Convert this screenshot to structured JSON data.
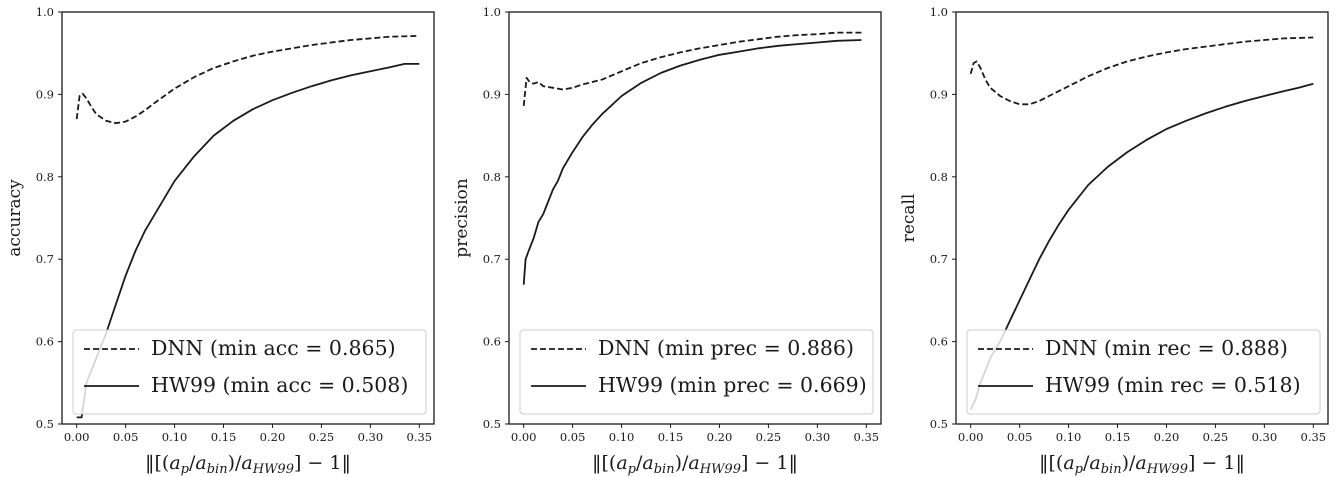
{
  "chart_data": [
    {
      "type": "line",
      "ylabel": "accuracy",
      "xlabel": "‖[(a_p/a_bin)/a_HW99] − 1‖",
      "xlim": [
        -0.015,
        0.365
      ],
      "ylim": [
        0.5,
        1.0
      ],
      "xticks": [
        "0.00",
        "0.05",
        "0.10",
        "0.15",
        "0.20",
        "0.25",
        "0.30",
        "0.35"
      ],
      "yticks": [
        "0.5",
        "0.6",
        "0.7",
        "0.8",
        "0.9",
        "1.0"
      ],
      "legend_position": "lower-right",
      "series": [
        {
          "name": "DNN (min acc = 0.865)",
          "style": "dashed",
          "x": [
            0.0,
            0.003,
            0.006,
            0.01,
            0.015,
            0.02,
            0.03,
            0.04,
            0.05,
            0.06,
            0.07,
            0.08,
            0.1,
            0.12,
            0.14,
            0.16,
            0.18,
            0.2,
            0.22,
            0.24,
            0.26,
            0.28,
            0.3,
            0.32,
            0.35
          ],
          "y": [
            0.87,
            0.898,
            0.901,
            0.895,
            0.885,
            0.876,
            0.868,
            0.865,
            0.867,
            0.873,
            0.881,
            0.89,
            0.907,
            0.921,
            0.932,
            0.94,
            0.947,
            0.952,
            0.956,
            0.96,
            0.963,
            0.966,
            0.968,
            0.97,
            0.971
          ]
        },
        {
          "name": "HW99 (min acc = 0.508)",
          "style": "solid",
          "x": [
            0.0,
            0.005,
            0.01,
            0.02,
            0.03,
            0.04,
            0.05,
            0.06,
            0.07,
            0.08,
            0.09,
            0.1,
            0.12,
            0.14,
            0.16,
            0.18,
            0.2,
            0.22,
            0.24,
            0.26,
            0.28,
            0.3,
            0.32,
            0.335,
            0.35
          ],
          "y": [
            0.508,
            0.508,
            0.55,
            0.58,
            0.61,
            0.645,
            0.68,
            0.71,
            0.735,
            0.755,
            0.775,
            0.795,
            0.825,
            0.85,
            0.868,
            0.882,
            0.893,
            0.902,
            0.91,
            0.917,
            0.923,
            0.928,
            0.933,
            0.937,
            0.937
          ]
        }
      ]
    },
    {
      "type": "line",
      "ylabel": "precision",
      "xlabel": "‖[(a_p/a_bin)/a_HW99] − 1‖",
      "xlim": [
        -0.015,
        0.365
      ],
      "ylim": [
        0.5,
        1.0
      ],
      "xticks": [
        "0.00",
        "0.05",
        "0.10",
        "0.15",
        "0.20",
        "0.25",
        "0.30",
        "0.35"
      ],
      "yticks": [
        "0.5",
        "0.6",
        "0.7",
        "0.8",
        "0.9",
        "1.0"
      ],
      "legend_position": "lower-right",
      "series": [
        {
          "name": "DNN (min prec = 0.886)",
          "style": "dashed",
          "x": [
            0.0,
            0.003,
            0.006,
            0.01,
            0.015,
            0.02,
            0.03,
            0.04,
            0.05,
            0.06,
            0.07,
            0.08,
            0.1,
            0.12,
            0.14,
            0.16,
            0.18,
            0.2,
            0.22,
            0.24,
            0.26,
            0.28,
            0.3,
            0.32,
            0.345
          ],
          "y": [
            0.886,
            0.92,
            0.915,
            0.913,
            0.915,
            0.91,
            0.908,
            0.906,
            0.908,
            0.912,
            0.915,
            0.918,
            0.928,
            0.938,
            0.945,
            0.951,
            0.956,
            0.96,
            0.964,
            0.967,
            0.97,
            0.972,
            0.973,
            0.975,
            0.975
          ]
        },
        {
          "name": "HW99 (min prec = 0.669)",
          "style": "solid",
          "x": [
            0.0,
            0.002,
            0.005,
            0.01,
            0.015,
            0.02,
            0.025,
            0.03,
            0.035,
            0.04,
            0.05,
            0.06,
            0.07,
            0.08,
            0.1,
            0.12,
            0.14,
            0.16,
            0.18,
            0.2,
            0.22,
            0.24,
            0.26,
            0.28,
            0.3,
            0.32,
            0.345
          ],
          "y": [
            0.669,
            0.7,
            0.71,
            0.725,
            0.745,
            0.755,
            0.77,
            0.785,
            0.795,
            0.81,
            0.83,
            0.848,
            0.863,
            0.876,
            0.898,
            0.914,
            0.926,
            0.935,
            0.942,
            0.948,
            0.952,
            0.956,
            0.959,
            0.961,
            0.963,
            0.965,
            0.966
          ]
        }
      ]
    },
    {
      "type": "line",
      "ylabel": "recall",
      "xlabel": "‖[(a_p/a_bin)/a_HW99] − 1‖",
      "xlim": [
        -0.015,
        0.365
      ],
      "ylim": [
        0.5,
        1.0
      ],
      "xticks": [
        "0.00",
        "0.05",
        "0.10",
        "0.15",
        "0.20",
        "0.25",
        "0.30",
        "0.35"
      ],
      "yticks": [
        "0.5",
        "0.6",
        "0.7",
        "0.8",
        "0.9",
        "1.0"
      ],
      "legend_position": "lower-right",
      "series": [
        {
          "name": "DNN (min rec = 0.888)",
          "style": "dashed",
          "x": [
            0.0,
            0.003,
            0.006,
            0.01,
            0.015,
            0.02,
            0.03,
            0.04,
            0.05,
            0.06,
            0.07,
            0.08,
            0.1,
            0.12,
            0.14,
            0.16,
            0.18,
            0.2,
            0.22,
            0.24,
            0.26,
            0.28,
            0.3,
            0.32,
            0.35
          ],
          "y": [
            0.925,
            0.938,
            0.94,
            0.932,
            0.918,
            0.908,
            0.898,
            0.892,
            0.888,
            0.888,
            0.892,
            0.898,
            0.91,
            0.922,
            0.932,
            0.94,
            0.946,
            0.951,
            0.955,
            0.958,
            0.961,
            0.964,
            0.966,
            0.968,
            0.969
          ]
        },
        {
          "name": "HW99 (min rec = 0.518)",
          "style": "solid",
          "x": [
            0.0,
            0.005,
            0.01,
            0.02,
            0.03,
            0.04,
            0.05,
            0.06,
            0.07,
            0.08,
            0.09,
            0.1,
            0.12,
            0.14,
            0.16,
            0.18,
            0.2,
            0.22,
            0.24,
            0.26,
            0.28,
            0.3,
            0.32,
            0.335,
            0.35
          ],
          "y": [
            0.518,
            0.53,
            0.55,
            0.58,
            0.6,
            0.625,
            0.65,
            0.675,
            0.7,
            0.722,
            0.742,
            0.76,
            0.79,
            0.812,
            0.83,
            0.845,
            0.858,
            0.868,
            0.877,
            0.885,
            0.892,
            0.898,
            0.904,
            0.908,
            0.913
          ]
        }
      ]
    }
  ]
}
